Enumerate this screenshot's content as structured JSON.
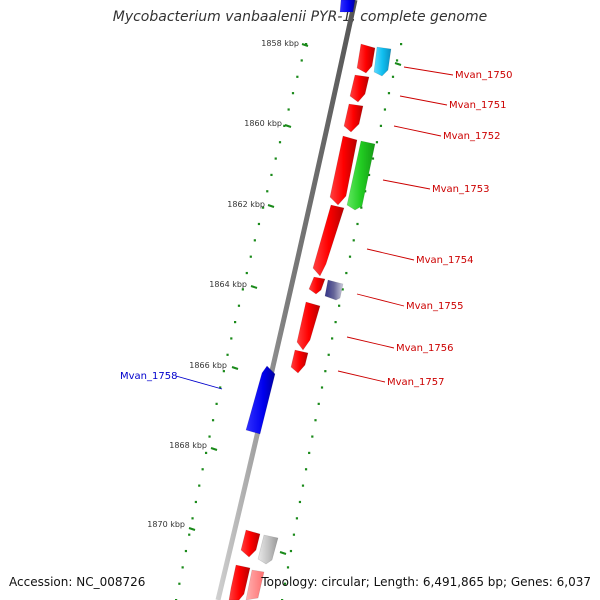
{
  "title": "Mycobacterium vanbaalenii PYR-1, complete genome",
  "footer": {
    "accession": "Accession: NC_008726",
    "summary": "Topology: circular; Length: 6,491,865 bp; Genes: 6,037"
  },
  "colors": {
    "forward_cds": "#ff0000",
    "reverse_cds": "#0000ee",
    "label_forward": "#cc0000",
    "label_reverse": "#0000cc",
    "tick": "#1a8a1a",
    "backbone": "#888888",
    "text": "#333333"
  },
  "scale_ticks": [
    {
      "label": "1858 kbp"
    },
    {
      "label": "1860 kbp"
    },
    {
      "label": "1862 kbp"
    },
    {
      "label": "1864 kbp"
    },
    {
      "label": "1866 kbp"
    },
    {
      "label": "1868 kbp"
    },
    {
      "label": "1870 kbp"
    }
  ],
  "gene_labels": [
    {
      "name": "Mvan_1750",
      "strand": "forward"
    },
    {
      "name": "Mvan_1751",
      "strand": "forward"
    },
    {
      "name": "Mvan_1752",
      "strand": "forward"
    },
    {
      "name": "Mvan_1753",
      "strand": "forward"
    },
    {
      "name": "Mvan_1754",
      "strand": "forward"
    },
    {
      "name": "Mvan_1755",
      "strand": "forward"
    },
    {
      "name": "Mvan_1756",
      "strand": "forward"
    },
    {
      "name": "Mvan_1757",
      "strand": "forward"
    },
    {
      "name": "Mvan_1758",
      "strand": "reverse"
    }
  ]
}
